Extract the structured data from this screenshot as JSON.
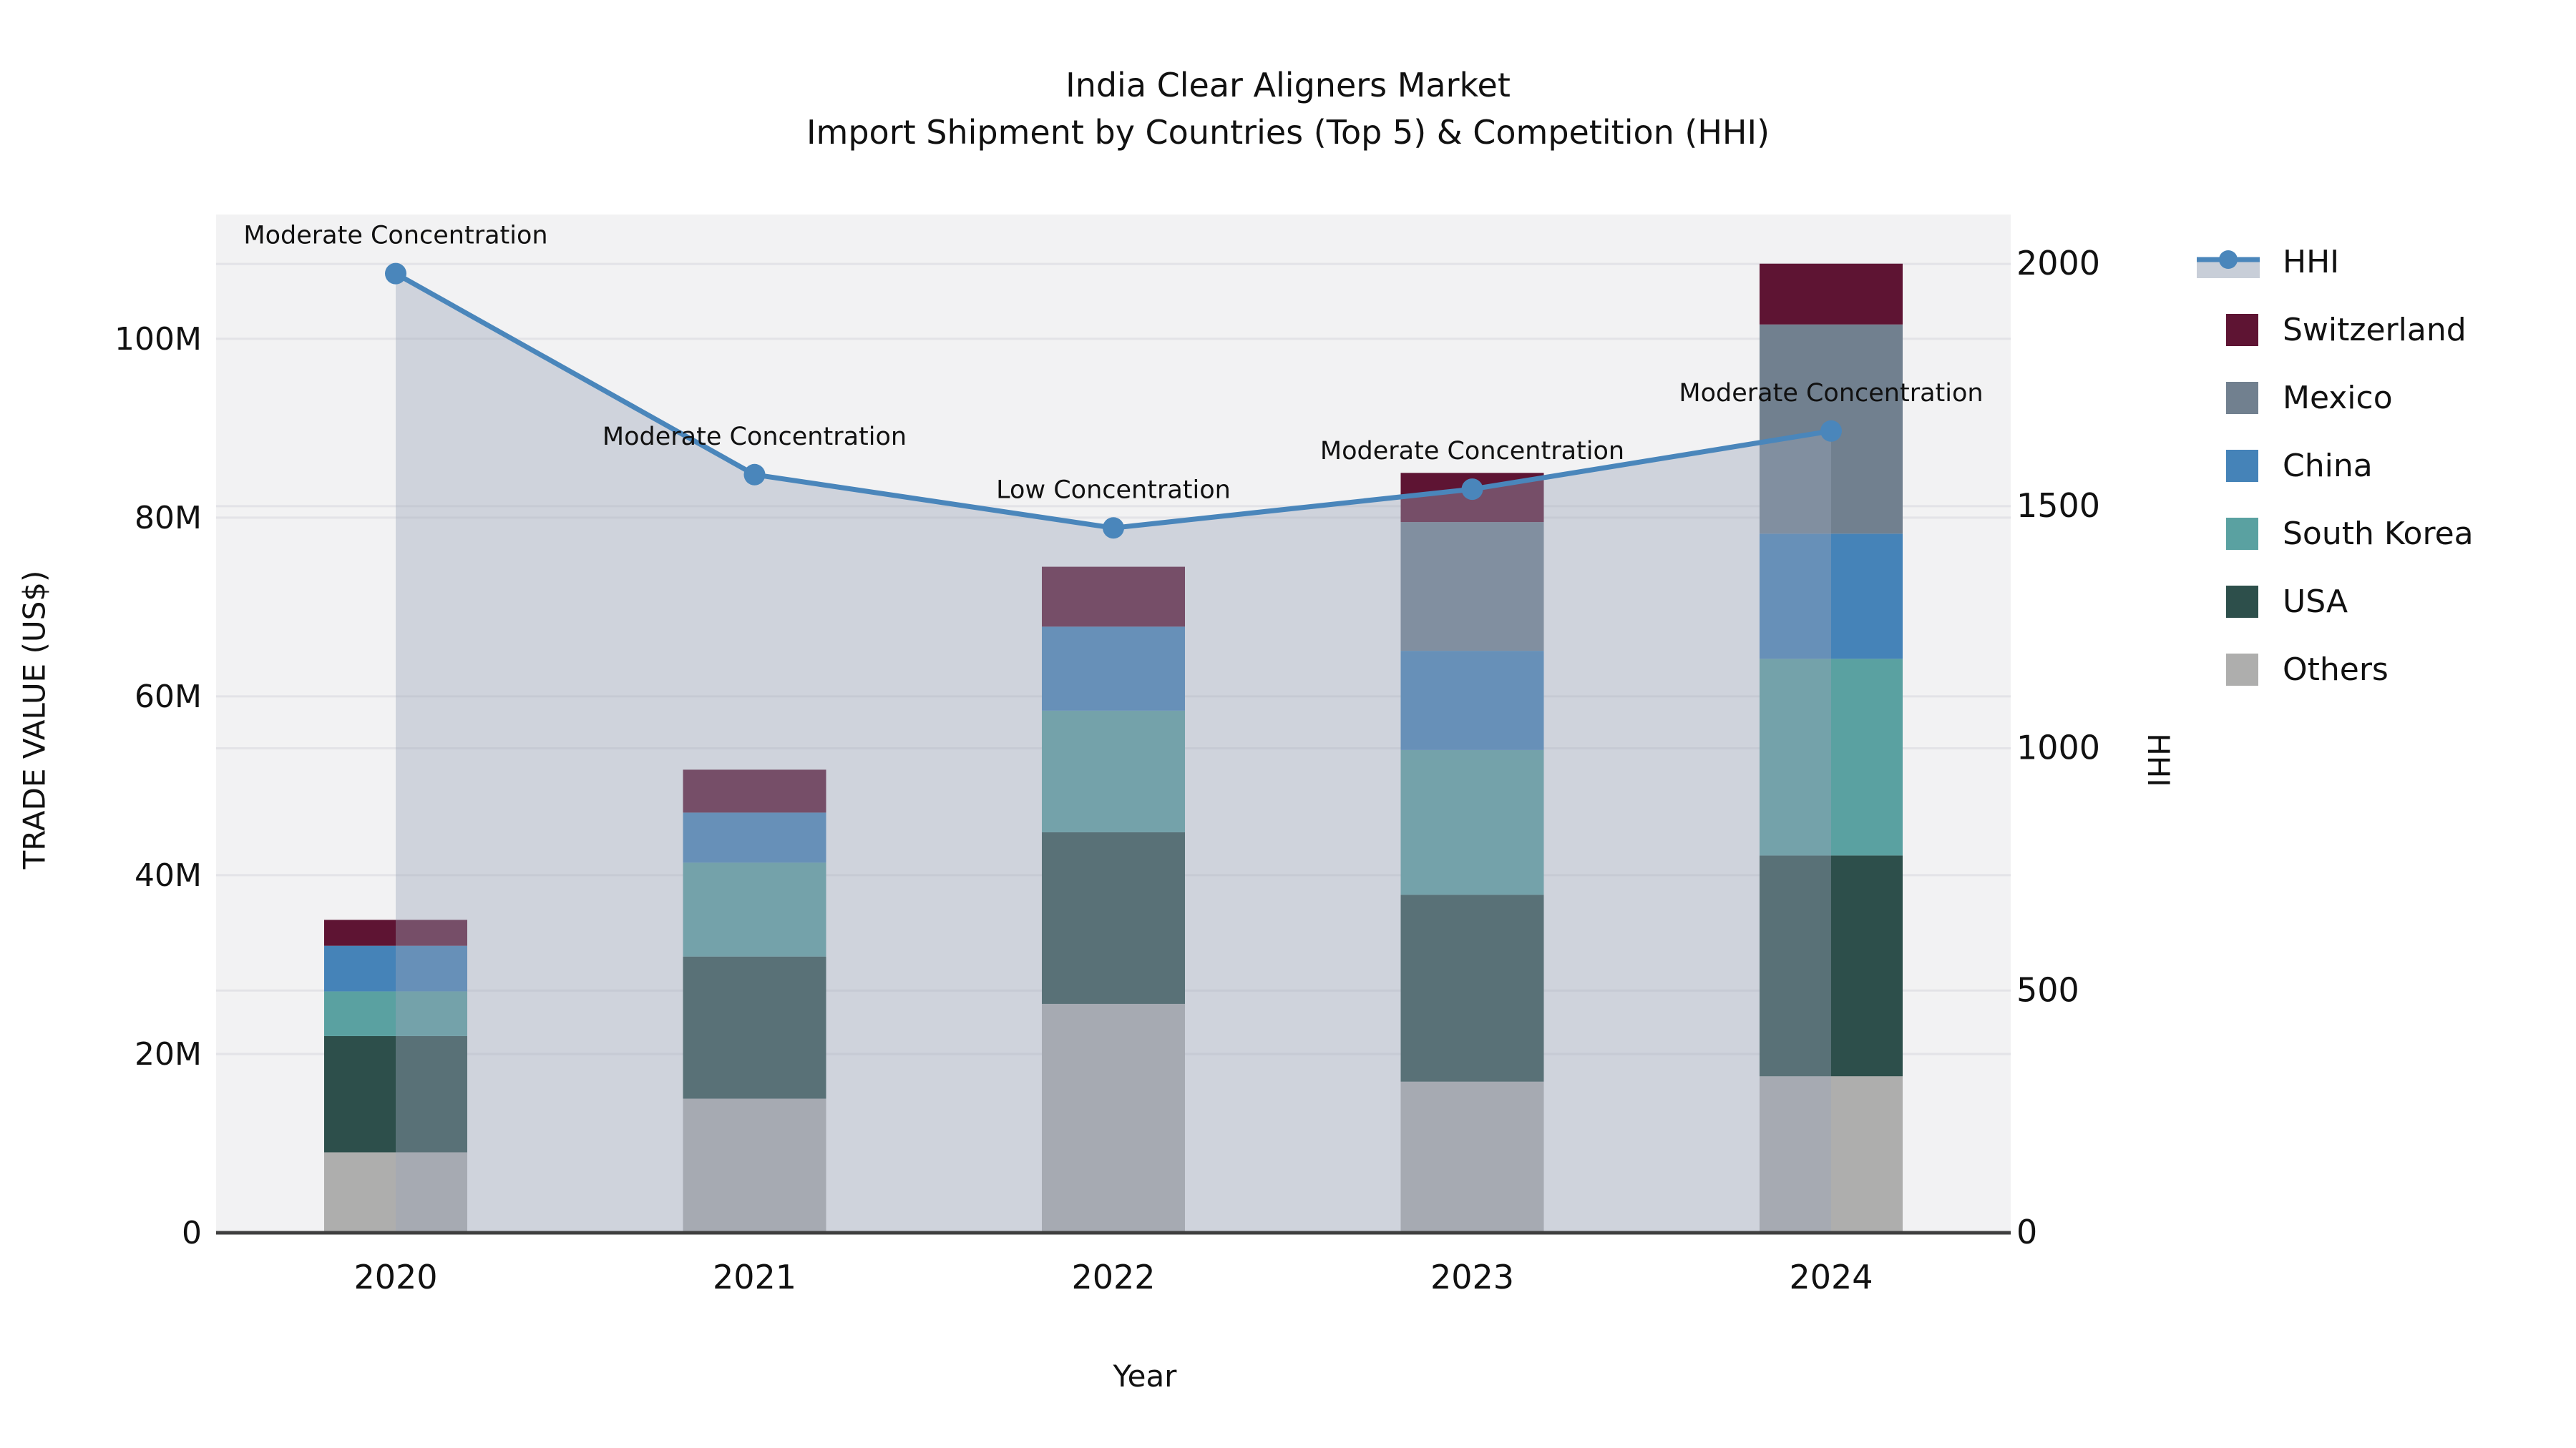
{
  "title": {
    "line1": "India Clear Aligners Market",
    "line2": "Import Shipment by Countries (Top 5) & Competition (HHI)"
  },
  "axes": {
    "left_label": "TRADE VALUE (US$)",
    "right_label": "HHI",
    "x_label": "Year",
    "left_ticks": [
      {
        "value": 0,
        "label": "0"
      },
      {
        "value": 20,
        "label": "20M"
      },
      {
        "value": 40,
        "label": "40M"
      },
      {
        "value": 60,
        "label": "60M"
      },
      {
        "value": 80,
        "label": "80M"
      },
      {
        "value": 100,
        "label": "100M"
      }
    ],
    "right_ticks": [
      {
        "value": 0,
        "label": "0"
      },
      {
        "value": 500,
        "label": "500"
      },
      {
        "value": 1000,
        "label": "1000"
      },
      {
        "value": 1500,
        "label": "1500"
      },
      {
        "value": 2000,
        "label": "2000"
      }
    ]
  },
  "legend": [
    {
      "label": "HHI",
      "type": "line"
    },
    {
      "label": "Switzerland",
      "type": "swatch",
      "color": "#5E1433"
    },
    {
      "label": "Mexico",
      "type": "swatch",
      "color": "#71808F"
    },
    {
      "label": "China",
      "type": "swatch",
      "color": "#4583B8"
    },
    {
      "label": "South Korea",
      "type": "swatch",
      "color": "#5AA1A1"
    },
    {
      "label": "USA",
      "type": "swatch",
      "color": "#2D4F4B"
    },
    {
      "label": "Others",
      "type": "swatch",
      "color": "#AEAEAD"
    }
  ],
  "chart_data": {
    "type": "combo-stacked-bar-line",
    "categories": [
      "2020",
      "2021",
      "2022",
      "2023",
      "2024"
    ],
    "bar_unit": "million US$",
    "series": [
      {
        "name": "Others",
        "color": "#AEAEAD",
        "values": [
          9.0,
          15.0,
          25.6,
          16.9,
          17.5
        ]
      },
      {
        "name": "USA",
        "color": "#2D4F4B",
        "values": [
          13.0,
          15.9,
          19.2,
          20.9,
          24.7
        ]
      },
      {
        "name": "South Korea",
        "color": "#5AA1A1",
        "values": [
          5.0,
          10.5,
          13.6,
          16.2,
          22.0
        ]
      },
      {
        "name": "China",
        "color": "#4583B8",
        "values": [
          5.1,
          5.6,
          9.4,
          11.1,
          14.0
        ]
      },
      {
        "name": "Mexico",
        "color": "#71808F",
        "values": [
          0,
          0,
          0,
          14.4,
          23.4
        ]
      },
      {
        "name": "Switzerland",
        "color": "#5E1433",
        "values": [
          2.9,
          4.8,
          6.7,
          5.5,
          6.8
        ]
      }
    ],
    "bar_totals": [
      35.0,
      51.8,
      74.5,
      85.0,
      108.4
    ],
    "line": {
      "name": "HHI",
      "color": "#4A86BB",
      "values": [
        1980,
        1565,
        1455,
        1535,
        1655
      ],
      "area_fill": "#9AA6B8",
      "area_opacity": 0.4
    },
    "annotations": [
      {
        "category": "2020",
        "text": "Moderate Concentration"
      },
      {
        "category": "2021",
        "text": "Moderate Concentration"
      },
      {
        "category": "2022",
        "text": "Low Concentration"
      },
      {
        "category": "2023",
        "text": "Moderate Concentration"
      },
      {
        "category": "2024",
        "text": "Moderate Concentration"
      }
    ],
    "ylabel": "TRADE VALUE (US$)",
    "y2label": "HHI",
    "xlabel": "Year",
    "ylim": [
      0,
      113.9
    ],
    "y2lim": [
      0,
      2102
    ],
    "grid": true,
    "legend_position": "right"
  },
  "colors": {
    "figure_background": "#FFFFFF",
    "plot_background": "#F2F2F3",
    "gridline": "#E3E3E7",
    "axis_line": "#3F3F3F",
    "text": "#111111"
  }
}
